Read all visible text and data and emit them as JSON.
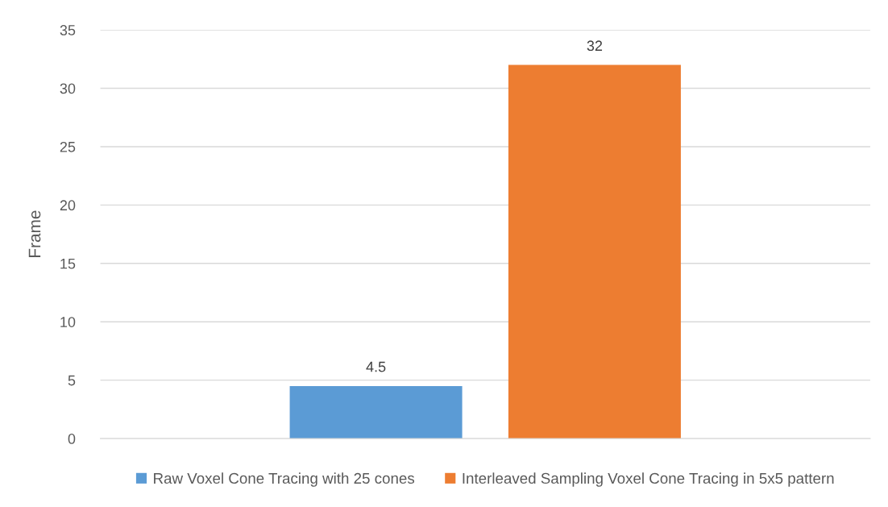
{
  "chart_data": {
    "type": "bar",
    "ylabel": "Frame",
    "categories": [
      null
    ],
    "series": [
      {
        "name": "Raw Voxel Cone Tracing with 25 cones",
        "color": "#5b9bd5",
        "values": [
          4.5
        ]
      },
      {
        "name": "Interleaved Sampling Voxel Cone Tracing in 5x5 pattern",
        "color": "#ed7d31",
        "values": [
          32
        ]
      }
    ],
    "ylim": [
      0,
      35
    ],
    "yticks": [
      0,
      5,
      10,
      15,
      20,
      25,
      30,
      35
    ],
    "grid": "y",
    "legend": "bottom",
    "data_labels": true
  }
}
